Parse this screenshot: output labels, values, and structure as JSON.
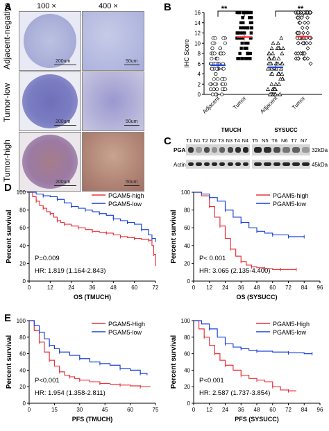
{
  "panel_a": {
    "letter": "A",
    "mag_low": "100 ×",
    "mag_high": "400 ×",
    "rows": [
      {
        "label": "Adjacent-negative",
        "scale_low": "200um",
        "scale_high": "50um",
        "color": "#b7bde0"
      },
      {
        "label": "Tumor-low",
        "scale_low": "200um",
        "scale_high": "50um",
        "color": "#7f7fc4"
      },
      {
        "label": "Tumor-high",
        "scale_low": "200um",
        "scale_high": "50um",
        "color": "#a8787a"
      }
    ]
  },
  "panel_b": {
    "letter": "B",
    "sig1": "**",
    "sig2": "**",
    "cohort1": "TMUCH",
    "cohort2": "SYSUCC",
    "groups": [
      "Adjacent",
      "Tumor",
      "Adjacent",
      "Tumor"
    ]
  },
  "panel_c": {
    "letter": "C",
    "lanes_left": [
      "T1",
      "N1",
      "T2",
      "N2",
      "T3",
      "N3",
      "T4",
      "N4"
    ],
    "lanes_right": [
      "T5",
      "N5",
      "T6",
      "N6",
      "T7",
      "N7"
    ],
    "row1": "PGAM5",
    "row2": "Actin",
    "kda1": "32kDa",
    "kda2": "45kDa"
  },
  "panel_d": {
    "letter": "D"
  },
  "panel_e": {
    "letter": "E"
  },
  "chart_data": [
    {
      "type": "scatter",
      "ylabel": "IHC Score",
      "ylim": [
        0,
        16
      ],
      "yticks": [
        0,
        2,
        4,
        6,
        8,
        10,
        12,
        14,
        16
      ],
      "categories": [
        "Adjacent",
        "Tumor",
        "Adjacent",
        "Tumor"
      ],
      "group_labels": [
        "TMUCH",
        "SYSUCC"
      ],
      "means": [
        5.7,
        11.2,
        5.3,
        11.3
      ],
      "significance": [
        "**",
        "**"
      ],
      "markers": [
        "circle",
        "square",
        "triangle",
        "diamond"
      ]
    },
    {
      "type": "line",
      "ylabel": "Percent survival",
      "xlabel": "OS (TMUCH)",
      "xlim": [
        0,
        72
      ],
      "ylim": [
        0,
        100
      ],
      "xticks": [
        0,
        12,
        24,
        36,
        48,
        60,
        72
      ],
      "yticks": [
        0,
        20,
        40,
        60,
        80,
        100
      ],
      "legend": [
        "PGAM5-high",
        "PGAM5-low"
      ],
      "annotations": [
        "P=0.009",
        "HR: 1.819 (1.164-2.843)"
      ],
      "series": [
        {
          "name": "PGAM5-high",
          "color": "#e8333b",
          "x": [
            0,
            2,
            4,
            6,
            8,
            10,
            12,
            14,
            16,
            18,
            20,
            24,
            28,
            32,
            36,
            40,
            44,
            48,
            52,
            56,
            60,
            64,
            68,
            70,
            71,
            72
          ],
          "y": [
            100,
            95,
            90,
            85,
            82,
            78,
            76,
            72,
            68,
            66,
            64,
            62,
            60,
            58,
            56,
            55,
            54,
            52,
            50,
            49,
            48,
            47,
            46,
            40,
            30,
            17
          ]
        },
        {
          "name": "PGAM5-low",
          "color": "#1c44d8",
          "x": [
            0,
            4,
            8,
            12,
            16,
            20,
            24,
            28,
            32,
            36,
            40,
            44,
            48,
            52,
            56,
            60,
            64,
            68,
            70,
            72
          ],
          "y": [
            100,
            98,
            96,
            95,
            92,
            88,
            84,
            82,
            80,
            78,
            76,
            74,
            70,
            68,
            66,
            64,
            58,
            52,
            48,
            44
          ]
        }
      ]
    },
    {
      "type": "line",
      "ylabel": "Percent survival",
      "xlabel": "OS (SYSUCC)",
      "xlim": [
        0,
        96
      ],
      "ylim": [
        0,
        100
      ],
      "xticks": [
        0,
        12,
        24,
        36,
        48,
        60,
        72,
        84,
        96
      ],
      "yticks": [
        0,
        20,
        40,
        60,
        80,
        100
      ],
      "legend": [
        "PGAM5-high",
        "PGAM5-low"
      ],
      "annotations": [
        "P< 0.001",
        "HR: 3.065 (2.135-4.400)"
      ],
      "series": [
        {
          "name": "PGAM5-high",
          "color": "#e8333b",
          "x": [
            0,
            6,
            12,
            16,
            20,
            24,
            28,
            32,
            36,
            40,
            44,
            48,
            54,
            60,
            66,
            72,
            78
          ],
          "y": [
            100,
            96,
            84,
            72,
            62,
            48,
            36,
            28,
            22,
            18,
            16,
            15,
            14,
            13,
            13,
            13,
            13
          ]
        },
        {
          "name": "PGAM5-low",
          "color": "#1c44d8",
          "x": [
            0,
            6,
            12,
            18,
            24,
            30,
            36,
            42,
            48,
            54,
            60,
            66,
            72,
            78,
            84
          ],
          "y": [
            100,
            98,
            94,
            90,
            80,
            72,
            66,
            60,
            56,
            54,
            52,
            52,
            50,
            50,
            50
          ]
        }
      ]
    },
    {
      "type": "line",
      "ylabel": "Percent survival",
      "xlabel": "PFS (TMUCH)",
      "xlim": [
        0,
        72
      ],
      "ylim": [
        0,
        100
      ],
      "xticks": [
        0,
        15,
        30,
        45,
        60,
        75
      ],
      "yticks": [
        0,
        20,
        40,
        60,
        80,
        100
      ],
      "legend": [
        "PGAM5-High",
        "PGAM5-low"
      ],
      "annotations": [
        "P<0.001",
        "HR: 1.954 (1.358-2.811)"
      ],
      "series": [
        {
          "name": "PGAM5-High",
          "color": "#e8333b",
          "x": [
            0,
            3,
            6,
            9,
            12,
            15,
            18,
            21,
            24,
            27,
            30,
            36,
            42,
            48,
            54,
            60,
            66,
            72
          ],
          "y": [
            100,
            88,
            74,
            62,
            52,
            45,
            38,
            34,
            32,
            30,
            28,
            26,
            24,
            23,
            22,
            21,
            20,
            20
          ]
        },
        {
          "name": "PGAM5-low",
          "color": "#1c44d8",
          "x": [
            0,
            3,
            6,
            9,
            12,
            15,
            18,
            24,
            30,
            36,
            42,
            48,
            54,
            60,
            66,
            70
          ],
          "y": [
            100,
            94,
            86,
            78,
            70,
            66,
            62,
            58,
            54,
            50,
            48,
            46,
            42,
            40,
            36,
            34
          ]
        }
      ]
    },
    {
      "type": "line",
      "ylabel": "Percent survival",
      "xlabel": "PFS (SYSUCC)",
      "xlim": [
        0,
        96
      ],
      "ylim": [
        0,
        100
      ],
      "xticks": [
        0,
        12,
        24,
        36,
        48,
        60,
        72,
        84,
        96
      ],
      "yticks": [
        0,
        20,
        40,
        60,
        80,
        100
      ],
      "legend": [
        "PGAM5-High",
        "PGAM5-low"
      ],
      "annotations": [
        "P<0.001",
        "HR: 2.587 (1.737-3.854)"
      ],
      "series": [
        {
          "name": "PGAM5-High",
          "color": "#e8333b",
          "x": [
            0,
            4,
            8,
            12,
            16,
            20,
            24,
            30,
            36,
            42,
            48,
            54,
            60,
            66,
            72,
            78
          ],
          "y": [
            100,
            90,
            80,
            70,
            60,
            52,
            46,
            40,
            34,
            30,
            28,
            26,
            20,
            16,
            15,
            15
          ]
        },
        {
          "name": "PGAM5-low",
          "color": "#1c44d8",
          "x": [
            0,
            6,
            12,
            18,
            24,
            30,
            36,
            42,
            48,
            60,
            72,
            84,
            90
          ],
          "y": [
            100,
            96,
            90,
            80,
            72,
            68,
            66,
            64,
            63,
            62,
            61,
            60,
            60
          ]
        }
      ]
    }
  ]
}
